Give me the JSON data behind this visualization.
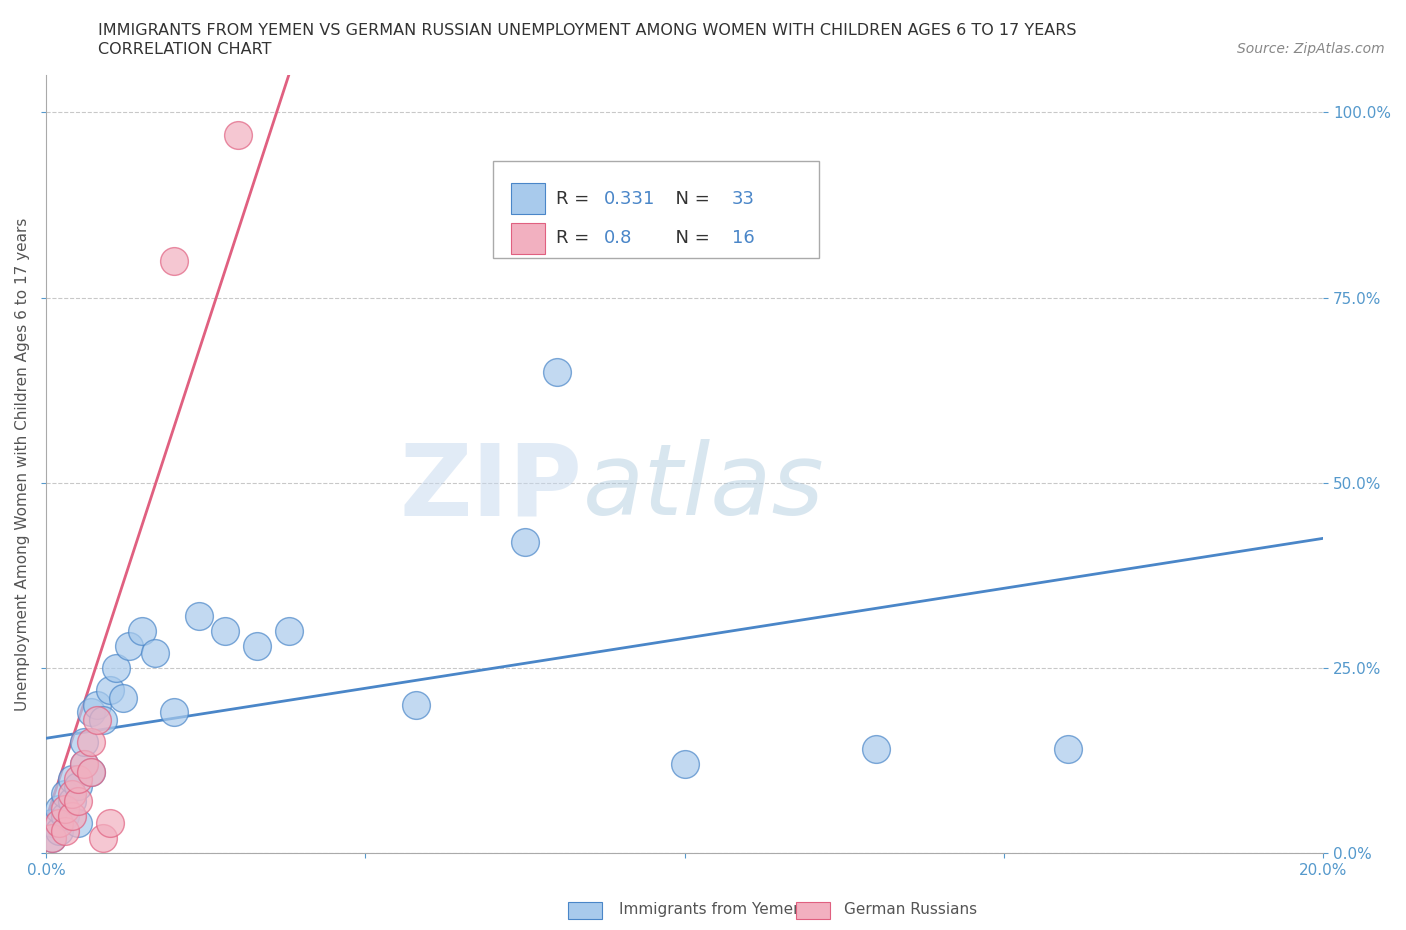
{
  "title_line1": "IMMIGRANTS FROM YEMEN VS GERMAN RUSSIAN UNEMPLOYMENT AMONG WOMEN WITH CHILDREN AGES 6 TO 17 YEARS",
  "title_line2": "CORRELATION CHART",
  "source": "Source: ZipAtlas.com",
  "xlim": [
    0.0,
    0.2
  ],
  "ylim": [
    0.0,
    1.05
  ],
  "blue_scatter_x": [
    0.001,
    0.001,
    0.002,
    0.002,
    0.003,
    0.003,
    0.004,
    0.004,
    0.005,
    0.005,
    0.006,
    0.006,
    0.007,
    0.007,
    0.008,
    0.009,
    0.01,
    0.011,
    0.012,
    0.013,
    0.015,
    0.017,
    0.02,
    0.024,
    0.028,
    0.033,
    0.038,
    0.058,
    0.075,
    0.1,
    0.13,
    0.16,
    0.08
  ],
  "blue_scatter_y": [
    0.02,
    0.04,
    0.03,
    0.06,
    0.05,
    0.08,
    0.07,
    0.1,
    0.04,
    0.09,
    0.12,
    0.15,
    0.11,
    0.19,
    0.2,
    0.18,
    0.22,
    0.25,
    0.21,
    0.28,
    0.3,
    0.27,
    0.19,
    0.32,
    0.3,
    0.28,
    0.3,
    0.2,
    0.42,
    0.12,
    0.14,
    0.14,
    0.65
  ],
  "pink_scatter_x": [
    0.001,
    0.002,
    0.003,
    0.003,
    0.004,
    0.004,
    0.005,
    0.005,
    0.006,
    0.007,
    0.007,
    0.008,
    0.009,
    0.01,
    0.02,
    0.03
  ],
  "pink_scatter_y": [
    0.02,
    0.04,
    0.03,
    0.06,
    0.05,
    0.08,
    0.07,
    0.1,
    0.12,
    0.15,
    0.11,
    0.18,
    0.02,
    0.04,
    0.8,
    0.97
  ],
  "blue_R": 0.331,
  "blue_N": 33,
  "pink_R": 0.8,
  "pink_N": 16,
  "blue_color": "#A8CAEC",
  "pink_color": "#F2B0C0",
  "blue_line_color": "#4A86C8",
  "pink_line_color": "#E06080",
  "scatter_size": 400,
  "scatter_lw": 1.0,
  "watermark_zip": "ZIP",
  "watermark_atlas": "atlas",
  "legend_label_blue": "Immigrants from Yemen",
  "legend_label_pink": "German Russians",
  "ylabel": "Unemployment Among Women with Children Ages 6 to 17 years",
  "grid_color": "#BBBBBB",
  "grid_style": "--",
  "tick_color": "#5599CC",
  "axis_color": "#AAAAAA"
}
